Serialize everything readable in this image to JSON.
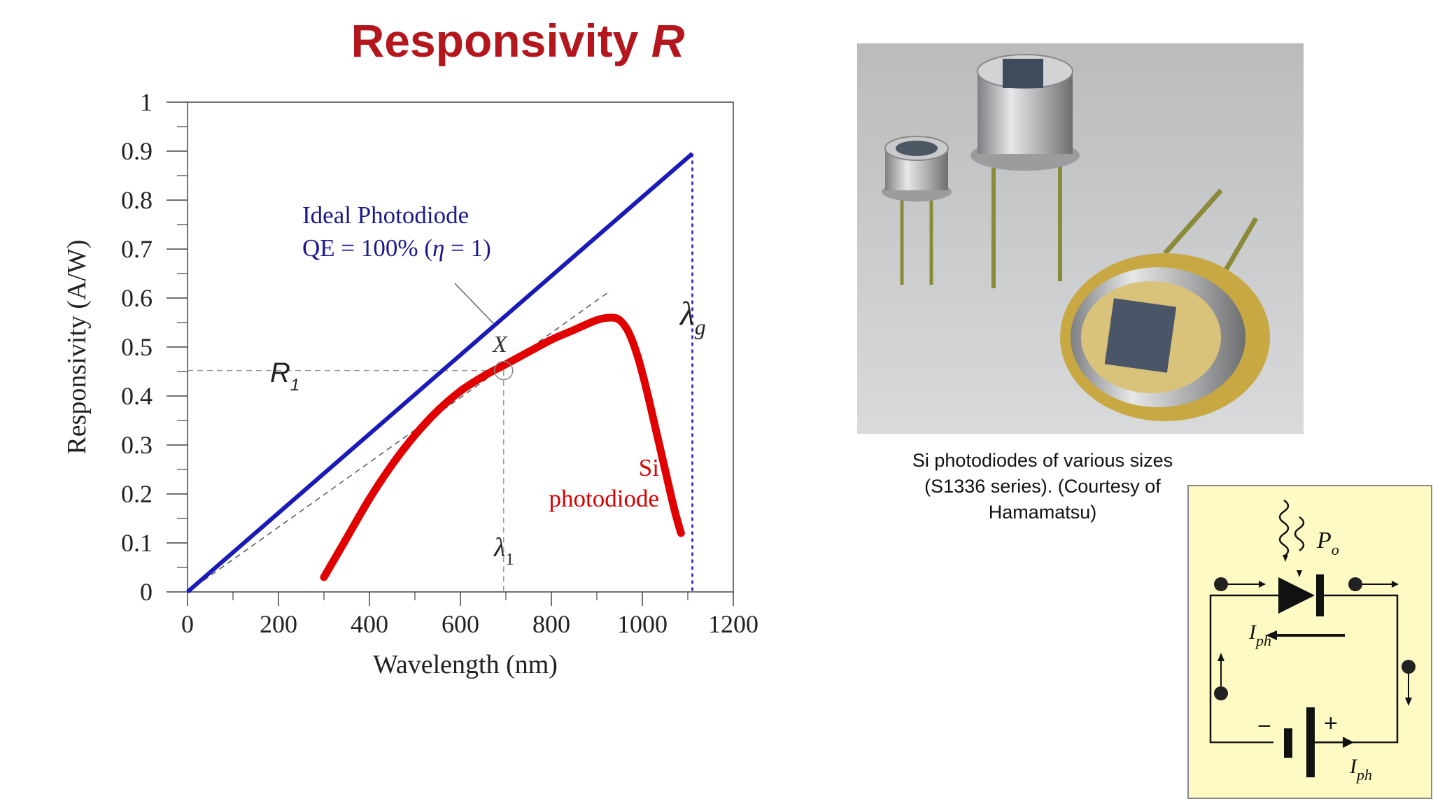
{
  "slide": {
    "title_main": "Responsivity",
    "title_var": "R"
  },
  "chart_data": {
    "type": "line",
    "xlabel": "Wavelength (nm)",
    "ylabel": "Responsivity (A/W)",
    "xlim": [
      0,
      1200
    ],
    "ylim": [
      0,
      1
    ],
    "xticks": [
      "0",
      "200",
      "400",
      "600",
      "800",
      "1000",
      "1200"
    ],
    "yticks": [
      "0",
      "0.1",
      "0.2",
      "0.3",
      "0.4",
      "0.5",
      "0.6",
      "0.7",
      "0.8",
      "0.9",
      "1"
    ],
    "xtick_values": [
      0,
      200,
      400,
      600,
      800,
      1000,
      1200
    ],
    "ytick_values": [
      0,
      0.1,
      0.2,
      0.3,
      0.4,
      0.5,
      0.6,
      0.7,
      0.8,
      0.9,
      1
    ],
    "grid": false,
    "series": [
      {
        "name": "Ideal Photodiode",
        "color": "#1a1ab8",
        "x": [
          0,
          1110
        ],
        "y": [
          0,
          0.895
        ]
      },
      {
        "name": "Si photodiode",
        "color": "#e00000",
        "x": [
          300,
          350,
          400,
          450,
          500,
          550,
          600,
          650,
          700,
          750,
          800,
          850,
          900,
          930,
          950,
          970,
          990,
          1010,
          1030,
          1050,
          1070,
          1085
        ],
        "y": [
          0.03,
          0.11,
          0.19,
          0.26,
          0.32,
          0.37,
          0.41,
          0.44,
          0.465,
          0.49,
          0.515,
          0.535,
          0.555,
          0.56,
          0.555,
          0.53,
          0.48,
          0.41,
          0.33,
          0.25,
          0.17,
          0.12
        ]
      }
    ],
    "tangent_line": {
      "x": [
        0,
        930
      ],
      "y": [
        0,
        0.615
      ],
      "color": "#555555"
    },
    "marker_point": {
      "x": 695,
      "y": 0.452
    },
    "annotations": {
      "ideal_line1": "Ideal Photodiode",
      "ideal_line2_pre": "QE = 100% (",
      "ideal_eta": "η",
      "ideal_line2_post": " = 1)",
      "si_line1": "Si",
      "si_line2": "photodiode",
      "x_point": "X",
      "r1": "R",
      "r1_sub": "1",
      "lambda1": "λ",
      "lambda1_sub": "1",
      "lambdag": "λ",
      "lambdag_sub": "g"
    },
    "lambda_g_x": 1110,
    "lambda_1_x": 695,
    "r1_y": 0.452
  },
  "photo": {
    "caption_l1": "Si photodiodes of various sizes",
    "caption_l2": "(S1336 series). (Courtesy of",
    "caption_l3": "Hamamatsu)"
  },
  "circuit": {
    "po": "P",
    "po_sub": "o",
    "iph": "I",
    "iph_sub": "ph",
    "minus": "−",
    "plus": "+",
    "bg": "#fdfbc3"
  }
}
